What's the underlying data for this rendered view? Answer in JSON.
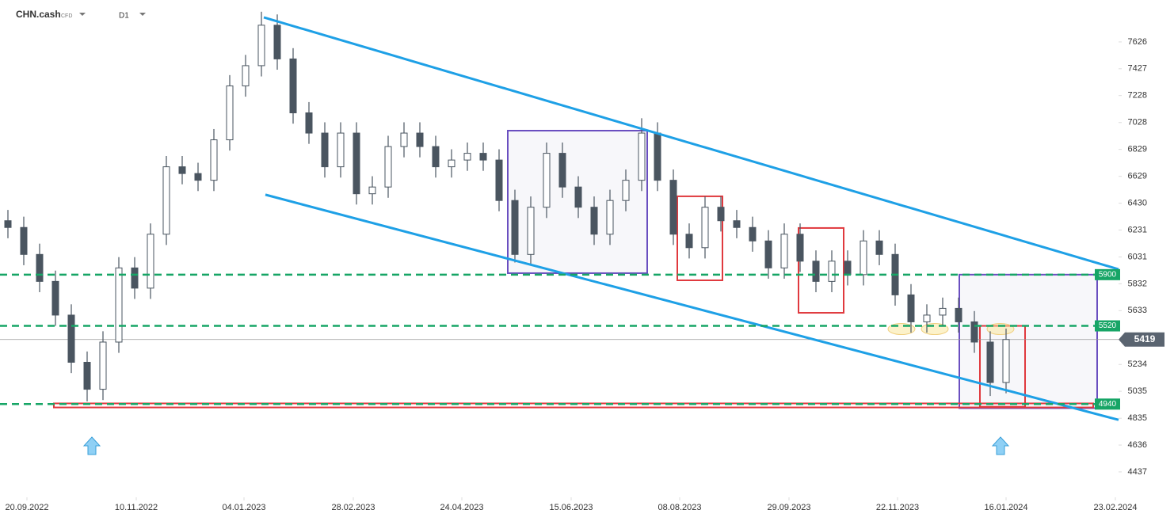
{
  "header": {
    "symbol": "CHN.cash",
    "instrument": "CFD",
    "interval": "D1"
  },
  "chart_data": {
    "type": "candlestick",
    "x": [
      0.5,
      1.5,
      2.5,
      3.5,
      4.5,
      5.5,
      6.5,
      7.5,
      8.5,
      9.5,
      10.5,
      11.5,
      12.5,
      13.5,
      14.5,
      15.5,
      16.5,
      17.5,
      18.5,
      19.5,
      20.5,
      21.5,
      22.5,
      23.5,
      24.5,
      25.5,
      26.5,
      27.5,
      28.5,
      29.5,
      30.5,
      31.5,
      32.5,
      33.5,
      34.5,
      35.5,
      36.5,
      37.5,
      38.5,
      39.5,
      40.5,
      41.5,
      42.5,
      43.5,
      44.5,
      45.5,
      46.5,
      47.5,
      48.5,
      49.5,
      50.5,
      51.5,
      52.5,
      53.5,
      54.5,
      55.5,
      56.5,
      57.5,
      58.5,
      59.5,
      60.5,
      61.5,
      62.5,
      63.5
    ],
    "open": [
      6300,
      6250,
      6050,
      5850,
      5600,
      5250,
      5050,
      5400,
      5950,
      5800,
      6200,
      6700,
      6650,
      6600,
      6900,
      7300,
      7450,
      7750,
      7500,
      7100,
      6950,
      6700,
      6950,
      6500,
      6550,
      6850,
      6950,
      6850,
      6700,
      6750,
      6800,
      6750,
      6450,
      6050,
      6400,
      6800,
      6550,
      6400,
      6200,
      6450,
      6600,
      6950,
      6600,
      6200,
      6100,
      6400,
      6300,
      6250,
      6150,
      5950,
      6200,
      6000,
      5850,
      6000,
      5900,
      6150,
      6050,
      5750,
      5550,
      5600,
      5650,
      5550,
      5400,
      5100
    ],
    "high": [
      6380,
      6330,
      6130,
      5930,
      5680,
      5330,
      5480,
      6030,
      6030,
      6280,
      6780,
      6780,
      6730,
      6980,
      7380,
      7530,
      7850,
      7830,
      7580,
      7180,
      7030,
      7030,
      7030,
      6630,
      6930,
      7030,
      7030,
      6930,
      6830,
      6880,
      6880,
      6830,
      6530,
      6480,
      6880,
      6880,
      6630,
      6480,
      6530,
      6680,
      7060,
      7030,
      6680,
      6280,
      6480,
      6480,
      6380,
      6330,
      6230,
      6280,
      6280,
      6080,
      6080,
      6080,
      6230,
      6230,
      6130,
      5830,
      5680,
      5730,
      5730,
      5630,
      5480,
      5500
    ],
    "low": [
      6170,
      5970,
      5770,
      5520,
      5170,
      4960,
      4970,
      5320,
      5720,
      5720,
      6120,
      6570,
      6520,
      6520,
      6820,
      7220,
      7370,
      7420,
      7020,
      6870,
      6620,
      6620,
      6420,
      6420,
      6470,
      6770,
      6770,
      6620,
      6620,
      6670,
      6670,
      6370,
      5990,
      5970,
      6320,
      6470,
      6320,
      6120,
      6120,
      6370,
      6520,
      6520,
      6120,
      6020,
      6020,
      6220,
      6170,
      6070,
      5870,
      5870,
      5920,
      5770,
      5770,
      5820,
      5820,
      5970,
      5670,
      5470,
      5470,
      5520,
      5470,
      5320,
      5000,
      5020
    ],
    "close": [
      6250,
      6050,
      5850,
      5600,
      5250,
      5050,
      5400,
      5950,
      5800,
      6200,
      6700,
      6650,
      6600,
      6900,
      7300,
      7450,
      7750,
      7500,
      7100,
      6950,
      6700,
      6950,
      6500,
      6550,
      6850,
      6950,
      6850,
      6700,
      6750,
      6800,
      6750,
      6450,
      6050,
      6400,
      6800,
      6550,
      6400,
      6200,
      6450,
      6600,
      6950,
      6600,
      6200,
      6100,
      6400,
      6300,
      6250,
      6150,
      5950,
      6200,
      6000,
      5850,
      6000,
      5900,
      6150,
      6050,
      5750,
      5550,
      5600,
      5650,
      5550,
      5400,
      5100,
      5419
    ],
    "up_color": "#ffffff",
    "down_color": "#4a5560",
    "xlim": [
      0,
      70.5
    ],
    "xticks": [
      {
        "value": 1.7,
        "label": "20.09.2022"
      },
      {
        "value": 8.6,
        "label": "10.11.2022"
      },
      {
        "value": 15.4,
        "label": "04.01.2023"
      },
      {
        "value": 22.3,
        "label": "28.02.2023"
      },
      {
        "value": 29.15,
        "label": "24.04.2023"
      },
      {
        "value": 36.05,
        "label": "15.06.2023"
      },
      {
        "value": 42.9,
        "label": "08.08.2023"
      },
      {
        "value": 49.8,
        "label": "29.09.2023"
      },
      {
        "value": 56.65,
        "label": "22.11.2023"
      },
      {
        "value": 63.5,
        "label": "16.01.2024"
      },
      {
        "value": 70.4,
        "label": "23.02.2024"
      }
    ],
    "ylim": [
      4237,
      7937
    ],
    "yticks": [
      4437,
      4636,
      4835,
      5035,
      5234,
      5633,
      5832,
      6031,
      6231,
      6430,
      6629,
      6829,
      7028,
      7228,
      7427,
      7626
    ],
    "levels": [
      {
        "value": 5900,
        "color": "#17a566"
      },
      {
        "value": 5520,
        "color": "#17a566"
      },
      {
        "value": 4940,
        "color": "#17a566"
      }
    ],
    "last_price": 5419,
    "channels": [
      {
        "x1": 16.65,
        "y1": 7808,
        "x2": 70.6,
        "y2": 5940,
        "color": "#1ea0e6"
      },
      {
        "x1": 16.75,
        "y1": 6493,
        "x2": 70.6,
        "y2": 4823,
        "color": "#1ea0e6"
      }
    ],
    "boxes": [
      {
        "x0": 32.05,
        "x1": 40.85,
        "y0": 5911,
        "y1": 6968,
        "color": "#6a4fc0"
      },
      {
        "x0": 42.75,
        "x1": 45.6,
        "y0": 5858,
        "y1": 6481,
        "color": "#e0393e"
      },
      {
        "x0": 50.4,
        "x1": 53.25,
        "y0": 5617,
        "y1": 6246,
        "color": "#e0393e"
      },
      {
        "x0": 60.55,
        "x1": 69.25,
        "y0": 4910,
        "y1": 5900,
        "color": "#6a4fc0"
      },
      {
        "x0": 61.85,
        "x1": 64.7,
        "y0": 4920,
        "y1": 5520,
        "color": "#e0393e"
      },
      {
        "x0": 3.4,
        "x1": 69,
        "y0": 4915,
        "y1": 4945,
        "color": "#e0393e"
      }
    ],
    "arrows": [
      5.8,
      63.15
    ],
    "highlights": [
      56.9,
      59,
      63.15
    ]
  }
}
